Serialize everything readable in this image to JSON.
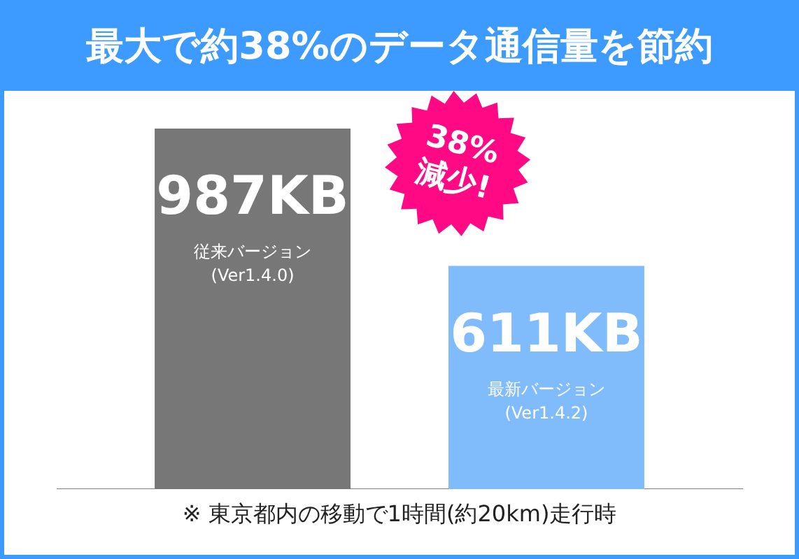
{
  "chart_data": {
    "type": "bar",
    "title": "最大で約38%のデータ通信量を節約",
    "categories": [
      "従来バージョン (Ver1.4.0)",
      "最新バージョン (Ver1.4.2)"
    ],
    "values": [
      987,
      611
    ],
    "colors": [
      "#777777",
      "#80bbfb"
    ],
    "value_labels": [
      "987KB",
      "611KB"
    ],
    "tick_labels": false,
    "grid": false,
    "annotations": [
      "38%減少!",
      "※ 東京都内の移動で1時間(約20km)走行時"
    ]
  }
}
